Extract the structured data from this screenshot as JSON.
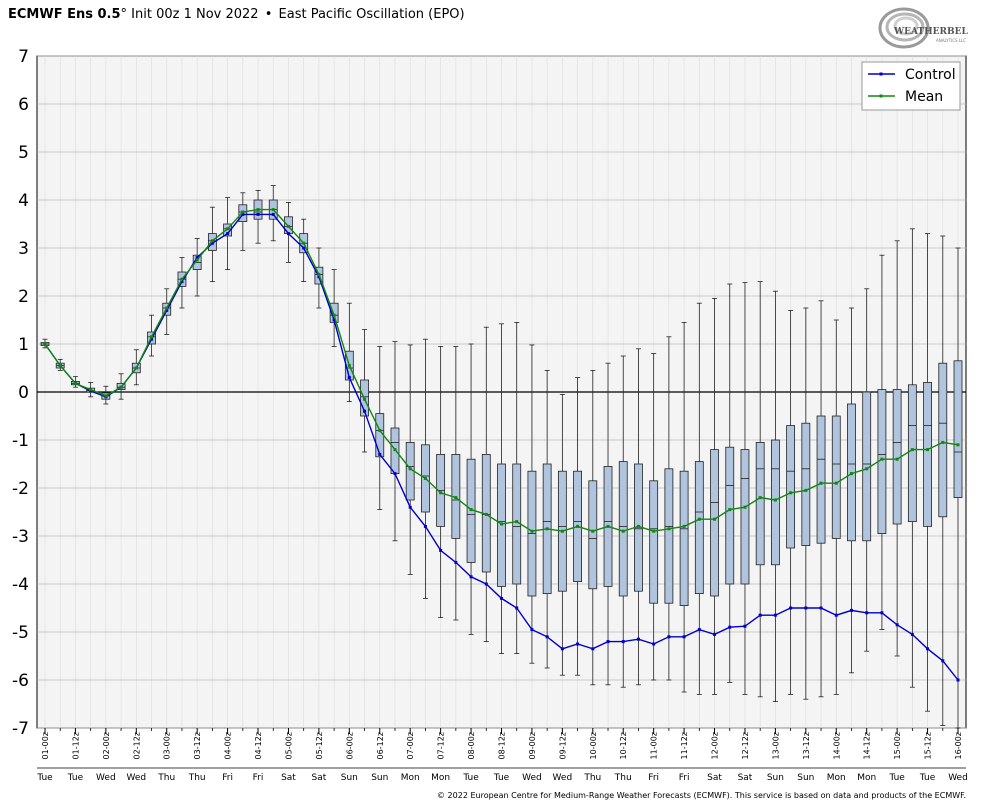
{
  "header": {
    "model": "ECMWF Ens 0.5",
    "degree": "°",
    "init": "Init 00z 1 Nov 2022",
    "bullet": "•",
    "index_name": "East Pacific Oscillation (EPO)"
  },
  "logo": {
    "text": "WeatherBELL",
    "subtext": "Analytics LLC"
  },
  "footer": {
    "credit": "© 2022 European Centre for Medium-Range Weather Forecasts (ECMWF). This service is based on data and products of the ECMWF."
  },
  "colors": {
    "control": "#0000cc",
    "mean": "#118811",
    "box_fill": "#b0c4de",
    "grid": "#bbbbbb",
    "plot_bg": "#f4f4f4"
  },
  "chart_data": {
    "type": "box",
    "title": "",
    "xlabel": "",
    "ylabel": "",
    "ylim": [
      -7,
      7
    ],
    "yticks": [
      -7,
      -6,
      -5,
      -4,
      -3,
      -2,
      -1,
      0,
      1,
      2,
      3,
      4,
      5,
      6,
      7
    ],
    "grid": true,
    "legend_position": "top-right",
    "legend": [
      {
        "name": "Control",
        "color": "#0000cc"
      },
      {
        "name": "Mean",
        "color": "#118811"
      }
    ],
    "x_tick_labels": [
      "01-00z",
      "01-12z",
      "02-00z",
      "02-12z",
      "03-00z",
      "03-12z",
      "04-00z",
      "04-12z",
      "05-00z",
      "05-12z",
      "06-00z",
      "06-12z",
      "07-00z",
      "07-12z",
      "08-00z",
      "08-12z",
      "09-00z",
      "09-12z",
      "10-00z",
      "10-12z",
      "11-00z",
      "11-12z",
      "12-00z",
      "12-12z",
      "13-00z",
      "13-12z",
      "14-00z",
      "14-12z",
      "15-00z",
      "15-12z",
      "16-00z"
    ],
    "x_day_labels": [
      "Tue",
      "Tue",
      "Wed",
      "Wed",
      "Thu",
      "Thu",
      "Fri",
      "Fri",
      "Sat",
      "Sat",
      "Sun",
      "Sun",
      "Mon",
      "Mon",
      "Tue",
      "Tue",
      "Wed",
      "Wed",
      "Thu",
      "Thu",
      "Fri",
      "Fri",
      "Sat",
      "Sat",
      "Sun",
      "Sun",
      "Mon",
      "Mon",
      "Tue",
      "Tue",
      "Wed"
    ],
    "control": [
      1.0,
      0.55,
      0.18,
      0.02,
      -0.1,
      0.1,
      0.5,
      1.1,
      1.7,
      2.3,
      2.8,
      3.1,
      3.3,
      3.7,
      3.7,
      3.7,
      3.3,
      3.0,
      2.4,
      1.5,
      0.3,
      -0.4,
      -1.3,
      -1.7,
      -2.4,
      -2.8,
      -3.3,
      -3.55,
      -3.85,
      -4.0,
      -4.3,
      -4.5,
      -4.95,
      -5.1,
      -5.35,
      -5.25,
      -5.35,
      -5.2,
      -5.2,
      -5.15,
      -5.25,
      -5.1,
      -5.1,
      -4.95,
      -5.05,
      -4.9,
      -4.88,
      -4.65,
      -4.65,
      -4.5,
      -4.5,
      -4.5,
      -4.65,
      -4.55,
      -4.6,
      -4.6,
      -4.85,
      -5.05,
      -5.35,
      -5.6,
      -6.0
    ],
    "mean": [
      1.0,
      0.55,
      0.18,
      0.05,
      -0.08,
      0.1,
      0.5,
      1.15,
      1.75,
      2.35,
      2.75,
      3.15,
      3.4,
      3.75,
      3.8,
      3.8,
      3.45,
      3.1,
      2.45,
      1.6,
      0.55,
      -0.15,
      -0.8,
      -1.2,
      -1.6,
      -1.8,
      -2.1,
      -2.2,
      -2.45,
      -2.55,
      -2.75,
      -2.7,
      -2.9,
      -2.85,
      -2.9,
      -2.8,
      -2.9,
      -2.8,
      -2.9,
      -2.8,
      -2.9,
      -2.85,
      -2.8,
      -2.65,
      -2.65,
      -2.45,
      -2.4,
      -2.2,
      -2.25,
      -2.1,
      -2.05,
      -1.9,
      -1.9,
      -1.7,
      -1.6,
      -1.4,
      -1.4,
      -1.2,
      -1.2,
      -1.05,
      -1.1
    ],
    "box_q1": [
      0.97,
      0.5,
      0.15,
      0.0,
      -0.15,
      0.05,
      0.4,
      1.0,
      1.6,
      2.2,
      2.55,
      2.95,
      3.25,
      3.55,
      3.6,
      3.6,
      3.3,
      2.9,
      2.25,
      1.45,
      0.25,
      -0.5,
      -1.35,
      -1.7,
      -2.25,
      -2.5,
      -2.8,
      -3.05,
      -3.55,
      -3.75,
      -4.05,
      -4.0,
      -4.25,
      -4.2,
      -4.15,
      -3.95,
      -4.1,
      -4.05,
      -4.25,
      -4.15,
      -4.4,
      -4.4,
      -4.45,
      -4.2,
      -4.25,
      -4.0,
      -4.0,
      -3.6,
      -3.6,
      -3.25,
      -3.2,
      -3.15,
      -3.05,
      -3.1,
      -3.1,
      -2.95,
      -2.75,
      -2.7,
      -2.8,
      -2.6,
      -2.2
    ],
    "box_q3": [
      1.03,
      0.6,
      0.22,
      0.08,
      -0.02,
      0.18,
      0.6,
      1.25,
      1.85,
      2.5,
      2.85,
      3.3,
      3.5,
      3.9,
      4.0,
      4.0,
      3.65,
      3.3,
      2.6,
      1.85,
      0.85,
      0.25,
      -0.45,
      -0.75,
      -1.05,
      -1.1,
      -1.3,
      -1.3,
      -1.4,
      -1.3,
      -1.5,
      -1.5,
      -1.65,
      -1.5,
      -1.65,
      -1.65,
      -1.85,
      -1.55,
      -1.45,
      -1.5,
      -1.85,
      -1.6,
      -1.65,
      -1.45,
      -1.2,
      -1.15,
      -1.2,
      -1.05,
      -1.0,
      -0.7,
      -0.65,
      -0.5,
      -0.5,
      -0.25,
      0.0,
      0.05,
      0.05,
      0.15,
      0.2,
      0.6,
      0.65
    ],
    "box_median": [
      1.0,
      0.55,
      0.18,
      0.03,
      -0.08,
      0.1,
      0.5,
      1.15,
      1.75,
      2.35,
      2.7,
      3.15,
      3.4,
      3.75,
      3.75,
      3.8,
      3.45,
      3.1,
      2.45,
      1.6,
      0.5,
      -0.1,
      -0.8,
      -1.05,
      -1.55,
      -1.75,
      -2.05,
      -2.25,
      -2.55,
      -2.55,
      -2.7,
      -2.8,
      -2.95,
      -2.7,
      -2.8,
      -2.7,
      -3.05,
      -2.7,
      -2.8,
      -2.85,
      -2.85,
      -2.8,
      -2.85,
      -2.5,
      -2.3,
      -1.95,
      -1.8,
      -1.6,
      -1.6,
      -1.65,
      -1.6,
      -1.4,
      -1.5,
      -1.5,
      -1.5,
      -1.3,
      -1.05,
      -0.7,
      -0.7,
      -0.65,
      -1.25
    ],
    "whisker_low": [
      0.92,
      0.45,
      0.1,
      -0.1,
      -0.25,
      -0.15,
      0.15,
      0.75,
      1.2,
      1.75,
      2.0,
      2.3,
      2.55,
      2.95,
      3.1,
      3.15,
      2.7,
      2.3,
      1.75,
      0.95,
      -0.2,
      -1.25,
      -2.45,
      -3.1,
      -3.8,
      -4.3,
      -4.7,
      -4.75,
      -5.05,
      -5.2,
      -5.45,
      -5.45,
      -5.65,
      -5.75,
      -5.9,
      -5.9,
      -6.1,
      -6.1,
      -6.15,
      -6.1,
      -6.0,
      -6.0,
      -6.25,
      -6.3,
      -6.3,
      -6.05,
      -6.3,
      -6.35,
      -6.45,
      -6.3,
      -6.4,
      -6.35,
      -6.3,
      -5.85,
      -5.4,
      -4.95,
      -5.5,
      -6.15,
      -6.65,
      -6.95,
      -7.0
    ],
    "whisker_high": [
      1.1,
      0.68,
      0.32,
      0.2,
      0.12,
      0.38,
      0.88,
      1.6,
      2.15,
      2.8,
      3.2,
      3.85,
      4.05,
      4.15,
      4.2,
      4.3,
      3.95,
      3.6,
      3.0,
      2.55,
      1.85,
      1.3,
      0.95,
      1.05,
      0.98,
      1.1,
      0.95,
      0.95,
      1.0,
      1.35,
      1.42,
      1.45,
      0.98,
      0.45,
      -0.05,
      0.3,
      0.45,
      0.6,
      0.75,
      0.9,
      0.8,
      1.15,
      1.45,
      1.85,
      1.95,
      2.25,
      2.28,
      2.3,
      2.1,
      1.7,
      1.75,
      1.9,
      1.5,
      1.75,
      2.15,
      2.85,
      3.15,
      3.4,
      3.3,
      3.25,
      3.0
    ]
  }
}
